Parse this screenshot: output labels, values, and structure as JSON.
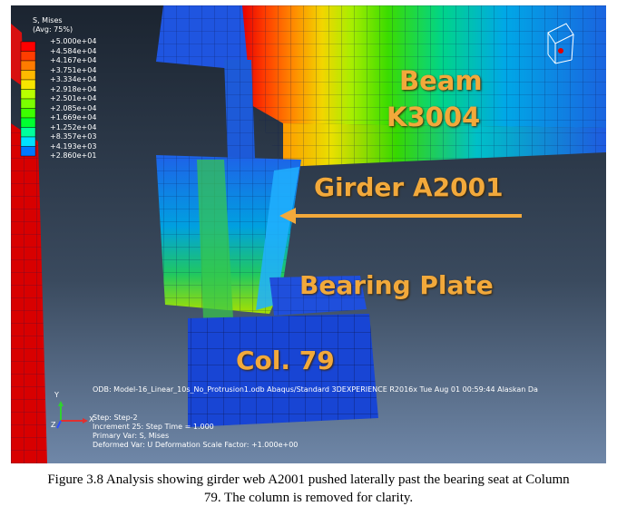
{
  "legend": {
    "title_line1": "S, Mises",
    "title_line2": "(Avg: 75%)",
    "values": [
      "+5.000e+04",
      "+4.584e+04",
      "+4.167e+04",
      "+3.751e+04",
      "+3.334e+04",
      "+2.918e+04",
      "+2.501e+04",
      "+2.085e+04",
      "+1.669e+04",
      "+1.252e+04",
      "+8.357e+03",
      "+4.193e+03",
      "+2.860e+01"
    ],
    "colors": [
      "#ff0000",
      "#ff3d00",
      "#ff7b00",
      "#ffb900",
      "#f7e600",
      "#b8ff00",
      "#7bff00",
      "#3dff00",
      "#00ff30",
      "#00ff9c",
      "#00e0ff",
      "#0078ff",
      "#0010ff"
    ]
  },
  "labels": {
    "beam_line1": "Beam",
    "beam_line2": "K3004",
    "girder": "Girder A2001",
    "bearing_plate": "Bearing Plate",
    "column": "Col. 79"
  },
  "info": {
    "odb_line": "ODB: Model-16_Linear_10s_No_Protrusion1.odb    Abaqus/Standard 3DEXPERIENCE R2016x    Tue Aug 01 00:59:44 Alaskan Da",
    "step": "Step: Step-2",
    "increment": "Increment     25: Step Time =    1.000",
    "primary_var": "Primary Var: S, Mises",
    "deformed_var": "Deformed Var: U   Deformation Scale Factor: +1.000e+00"
  },
  "triad": {
    "y": "Y",
    "z": "Z",
    "x": "X"
  },
  "caption": {
    "line1": "Figure 3.8 Analysis showing girder web A2001 pushed laterally past the bearing seat at Column",
    "line2": "79. The column is removed for clarity."
  }
}
